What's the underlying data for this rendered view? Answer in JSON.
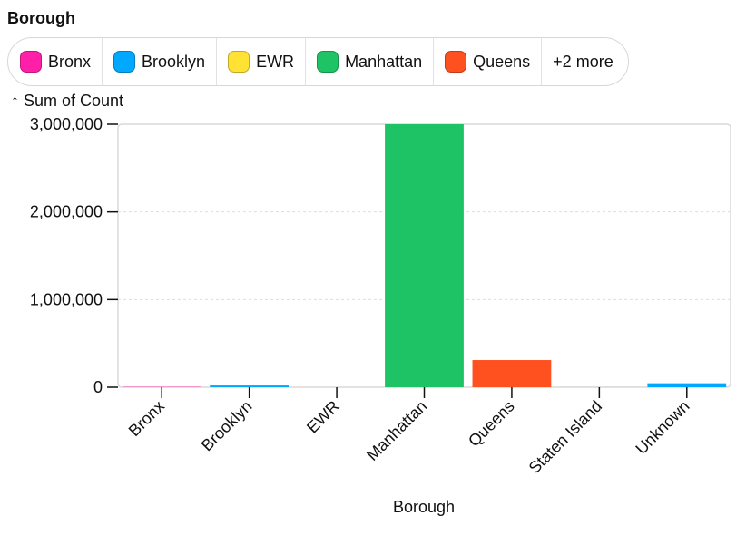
{
  "legend": {
    "title": "Borough",
    "items": [
      {
        "label": "Bronx",
        "color": "#ff1fa8"
      },
      {
        "label": "Brooklyn",
        "color": "#00a8ff"
      },
      {
        "label": "EWR",
        "color": "#ffe234"
      },
      {
        "label": "Manhattan",
        "color": "#1dc364"
      },
      {
        "label": "Queens",
        "color": "#ff5020"
      }
    ],
    "more_label": "+2 more"
  },
  "chart_data": {
    "type": "bar",
    "ylabel": "↑ Sum of Count",
    "xlabel": "Borough",
    "categories": [
      "Bronx",
      "Brooklyn",
      "EWR",
      "Manhattan",
      "Queens",
      "Staten Island",
      "Unknown"
    ],
    "values": [
      4000,
      20000,
      200,
      3000000,
      310000,
      1000,
      45000
    ],
    "colors": [
      "#ff1fa8",
      "#00a8ff",
      "#ffe234",
      "#1dc364",
      "#ff5020",
      "#b0b0b0",
      "#00a8ff"
    ],
    "ylim": [
      0,
      3000000
    ],
    "yticks": [
      0,
      1000000,
      2000000,
      3000000
    ],
    "ytick_labels": [
      "0",
      "1,000,000",
      "2,000,000",
      "3,000,000"
    ],
    "grid": true
  }
}
